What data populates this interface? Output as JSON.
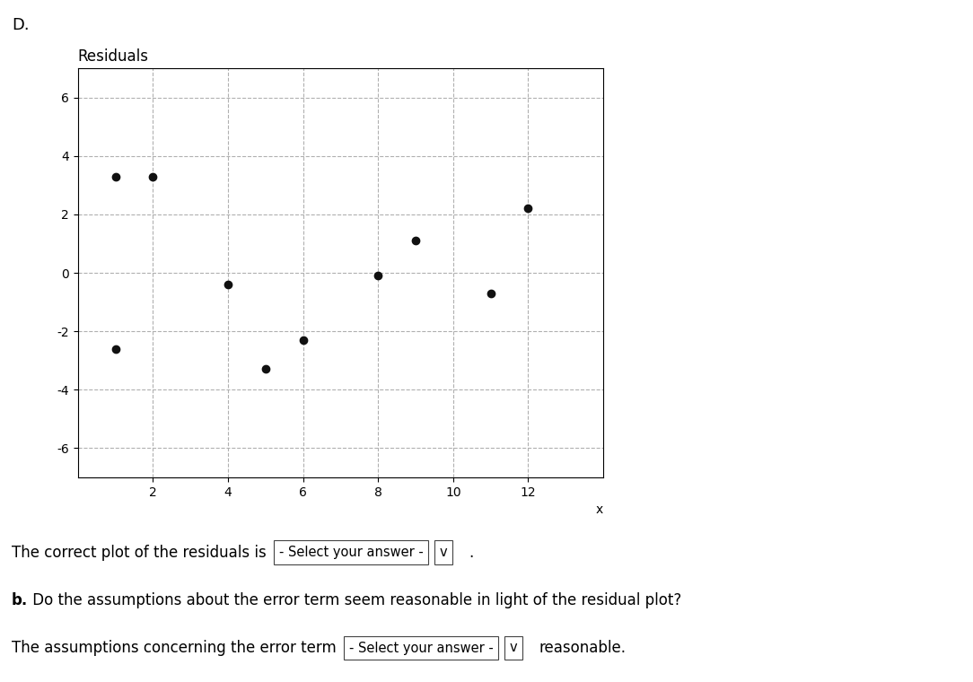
{
  "chart_data": {
    "type": "scatter",
    "title": "Residuals",
    "xlabel": "x",
    "x": [
      1,
      2,
      1,
      4,
      5,
      6,
      8,
      9,
      11,
      12
    ],
    "values": [
      3.3,
      3.3,
      -2.6,
      -0.4,
      -3.3,
      -2.3,
      -0.1,
      1.1,
      -0.7,
      2.2
    ],
    "color": "#111111",
    "xlim": [
      0,
      14
    ],
    "ylim": [
      -7,
      7
    ],
    "xticks": [
      2,
      4,
      6,
      8,
      10,
      12
    ],
    "yticks": [
      -6,
      -4,
      -2,
      0,
      2,
      4,
      6
    ],
    "grid": true,
    "annotations": [
      "D.",
      "The correct plot of the residuals is",
      "- Select your answer -",
      "v",
      ".",
      "b.",
      " Do the assumptions about the error term seem reasonable in light of the residual plot?",
      "The assumptions concerning the error term",
      "- Select your answer -",
      "v",
      "reasonable."
    ]
  }
}
